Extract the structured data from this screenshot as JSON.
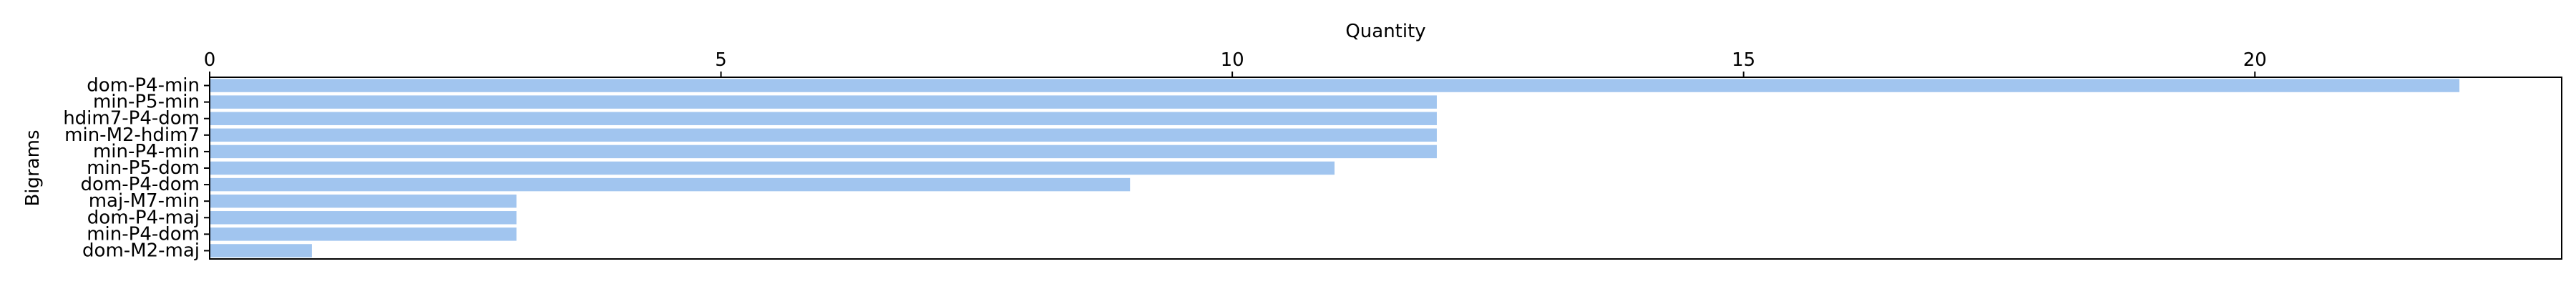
{
  "chart_data": {
    "type": "bar",
    "orientation": "horizontal",
    "title": "",
    "xlabel": "Quantity",
    "ylabel": "Bigrams",
    "xaxis_position": "top",
    "xlim": [
      0,
      23
    ],
    "xticks": [
      0,
      5,
      10,
      15,
      20
    ],
    "grid": false,
    "legend": "none",
    "bar_color": "#a1c5ef",
    "categories": [
      "dom-P4-min",
      "min-P5-min",
      "hdim7-P4-dom",
      "min-M2-hdim7",
      "min-P4-min",
      "min-P5-dom",
      "dom-P4-dom",
      "maj-M7-min",
      "dom-P4-maj",
      "min-P4-dom",
      "dom-M2-maj"
    ],
    "values": [
      22,
      12,
      12,
      12,
      12,
      11,
      9,
      3,
      3,
      3,
      1
    ]
  }
}
